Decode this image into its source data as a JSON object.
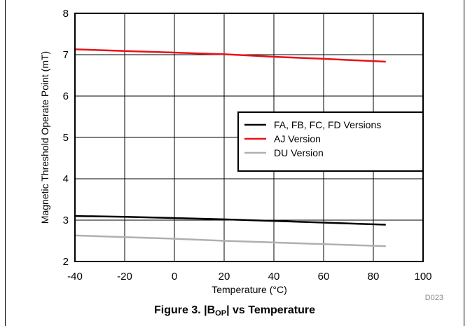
{
  "chart_data": {
    "type": "line",
    "xlabel": "Temperature (°C)",
    "ylabel": "Magnetic Threshold Operate Point (mT)",
    "xlim": [
      -40,
      100
    ],
    "ylim": [
      2,
      8
    ],
    "xticks": [
      "-40",
      "-20",
      "0",
      "20",
      "40",
      "60",
      "80",
      "100"
    ],
    "yticks": [
      "2",
      "3",
      "4",
      "5",
      "6",
      "7",
      "8"
    ],
    "grid": true,
    "legend_position": "right",
    "series": [
      {
        "name": "FA, FB, FC, FD Versions",
        "color": "#000000",
        "x": [
          -40,
          -20,
          0,
          20,
          40,
          60,
          85
        ],
        "y": [
          3.1,
          3.08,
          3.05,
          3.02,
          2.98,
          2.94,
          2.89
        ]
      },
      {
        "name": "AJ Version",
        "color": "#e8121a",
        "x": [
          -40,
          -20,
          0,
          20,
          40,
          60,
          85
        ],
        "y": [
          7.13,
          7.09,
          7.05,
          7.01,
          6.95,
          6.9,
          6.83
        ]
      },
      {
        "name": "DU Version",
        "color": "#b0b0b0",
        "x": [
          -40,
          -20,
          0,
          20,
          40,
          60,
          85
        ],
        "y": [
          2.63,
          2.59,
          2.55,
          2.5,
          2.46,
          2.42,
          2.37
        ]
      }
    ],
    "figure_code": "D023",
    "caption": {
      "prefix": "Figure 3. |B",
      "sub": "OP",
      "suffix": "| vs Temperature"
    }
  }
}
